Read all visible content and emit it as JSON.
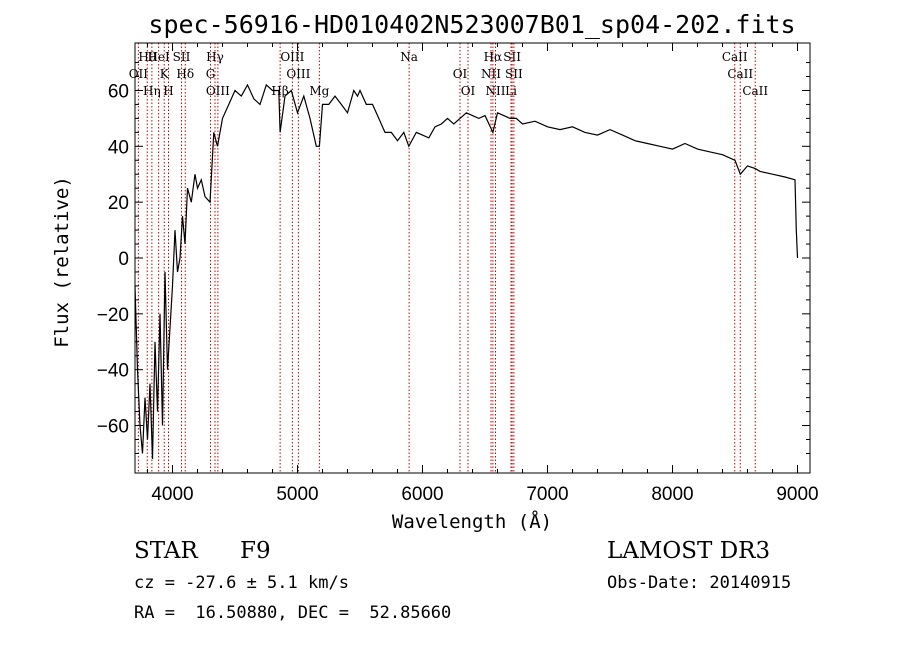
{
  "chart_data": {
    "type": "line",
    "title": "spec-56916-HD010402N523007B01_sp04-202.fits",
    "xlabel": "Wavelength (Å)",
    "ylabel": "Flux (relative)",
    "xlim": [
      3700,
      9100
    ],
    "ylim": [
      -77,
      77
    ],
    "xticks": [
      4000,
      5000,
      6000,
      7000,
      8000,
      9000
    ],
    "yticks": [
      -60,
      -40,
      -20,
      0,
      20,
      40,
      60
    ],
    "series": [
      {
        "name": "flux",
        "x": [
          3700,
          3720,
          3740,
          3760,
          3780,
          3800,
          3820,
          3840,
          3860,
          3880,
          3900,
          3920,
          3940,
          3960,
          3980,
          4000,
          4020,
          4040,
          4060,
          4080,
          4100,
          4120,
          4150,
          4180,
          4200,
          4230,
          4260,
          4300,
          4330,
          4360,
          4400,
          4450,
          4500,
          4550,
          4600,
          4650,
          4700,
          4750,
          4800,
          4850,
          4861,
          4900,
          4950,
          5000,
          5050,
          5100,
          5150,
          5175,
          5200,
          5250,
          5300,
          5350,
          5400,
          5450,
          5480,
          5500,
          5550,
          5600,
          5650,
          5700,
          5750,
          5800,
          5850,
          5890,
          5950,
          6000,
          6050,
          6100,
          6150,
          6200,
          6250,
          6300,
          6350,
          6400,
          6450,
          6500,
          6563,
          6600,
          6650,
          6700,
          6750,
          6800,
          6900,
          7000,
          7100,
          7200,
          7300,
          7400,
          7500,
          7600,
          7700,
          7800,
          7900,
          8000,
          8100,
          8200,
          8300,
          8400,
          8500,
          8542,
          8600,
          8662,
          8700,
          8800,
          8900,
          8980,
          8990,
          9000
        ],
        "values": [
          -10,
          -40,
          -60,
          -70,
          -50,
          -65,
          -45,
          -72,
          -30,
          -55,
          -20,
          -60,
          -5,
          -40,
          -25,
          -10,
          10,
          -5,
          0,
          15,
          5,
          25,
          20,
          30,
          25,
          28,
          22,
          20,
          45,
          40,
          50,
          55,
          60,
          58,
          62,
          57,
          55,
          62,
          60,
          60,
          45,
          58,
          60,
          52,
          58,
          50,
          40,
          40,
          55,
          55,
          58,
          55,
          52,
          60,
          58,
          60,
          55,
          55,
          50,
          45,
          45,
          42,
          45,
          40,
          45,
          44,
          43,
          47,
          48,
          50,
          48,
          50,
          52,
          51,
          50,
          51,
          45,
          52,
          51,
          50,
          50,
          48,
          49,
          47,
          46,
          47,
          45,
          44,
          46,
          44,
          42,
          41,
          40,
          39,
          41,
          39,
          38,
          37,
          35,
          30,
          33,
          32,
          31,
          30,
          29,
          28,
          10,
          0
        ]
      }
    ],
    "line_markers": [
      {
        "label": "Hθ",
        "wl": 3798
      },
      {
        "label": "OII",
        "wl": 3727
      },
      {
        "label": "Hη",
        "wl": 3835
      },
      {
        "label": "HeI",
        "wl": 3889
      },
      {
        "label": "K",
        "wl": 3934
      },
      {
        "label": "H",
        "wl": 3968
      },
      {
        "label": "SII",
        "wl": 4072
      },
      {
        "label": "Hδ",
        "wl": 4102
      },
      {
        "label": "OIII",
        "wl": 4363
      },
      {
        "label": "Hγ",
        "wl": 4340
      },
      {
        "label": "G",
        "wl": 4304
      },
      {
        "label": "Hβ",
        "wl": 4861
      },
      {
        "label": "OIII",
        "wl": 4959
      },
      {
        "label": "OIII",
        "wl": 5007
      },
      {
        "label": "Mg",
        "wl": 5175
      },
      {
        "label": "Na",
        "wl": 5893
      },
      {
        "label": "OI",
        "wl": 6300
      },
      {
        "label": "OI",
        "wl": 6364
      },
      {
        "label": "Hα",
        "wl": 6563
      },
      {
        "label": "NII",
        "wl": 6548
      },
      {
        "label": "NII",
        "wl": 6584
      },
      {
        "label": "SII",
        "wl": 6717
      },
      {
        "label": "SII",
        "wl": 6731
      },
      {
        "label": "Li",
        "wl": 6708
      },
      {
        "label": "CaII",
        "wl": 8498
      },
      {
        "label": "CaII",
        "wl": 8542
      },
      {
        "label": "CaII",
        "wl": 8662
      }
    ]
  },
  "info": {
    "class_label": "STAR",
    "subclass": "F9",
    "survey": "LAMOST DR3",
    "cz_line": "cz = -27.6 ± 5.1 km/s",
    "obs_date": "Obs-Date: 20140915",
    "coords": "RA =  16.50880, DEC =  52.85660"
  },
  "colors": {
    "marker": "#cc0000",
    "spectrum": "#000000"
  }
}
